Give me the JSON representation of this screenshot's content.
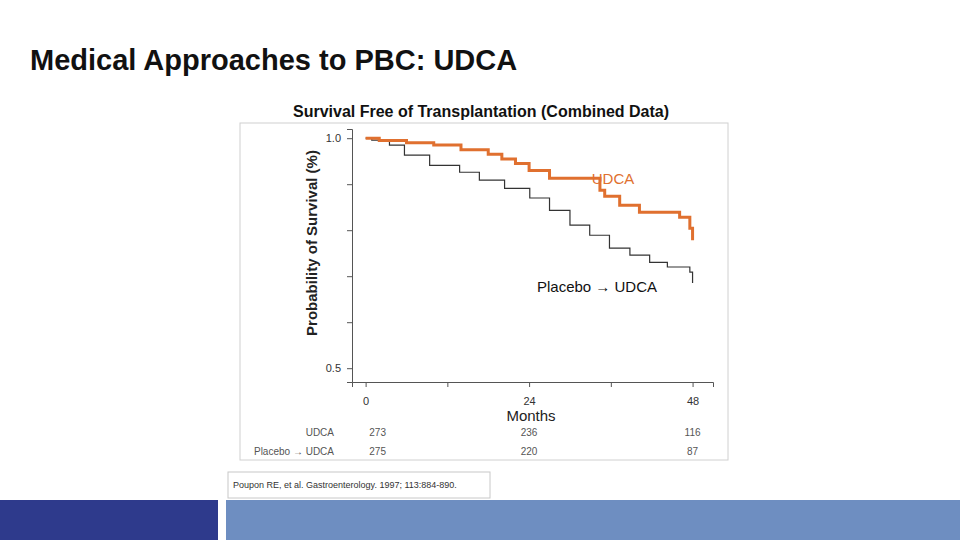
{
  "slide": {
    "title": "Medical Approaches to PBC: UDCA",
    "source": "Poupon RE, et al. Gastroenterology. 1997; 113:884-890."
  },
  "chart_data": {
    "type": "line",
    "title": "Survival Free of Transplantation (Combined Data)",
    "x_label": "Months",
    "y_label": "Probability of Survival (%)",
    "xlim": [
      -2,
      51
    ],
    "ylim": [
      0.47,
      1.02
    ],
    "xticks": [
      0,
      {
        "value": 12,
        "label": null
      },
      24,
      {
        "value": 36,
        "label": null
      },
      48
    ],
    "yticks": [
      {
        "value": 0.5,
        "label": "0.5"
      },
      {
        "value": 0.6,
        "label": null
      },
      {
        "value": 0.7,
        "label": null
      },
      {
        "value": 0.8,
        "label": null
      },
      {
        "value": 0.9,
        "label": null
      },
      {
        "value": 1,
        "label": "1.0"
      }
    ],
    "at_risk_x": [
      0,
      24,
      48
    ],
    "series": [
      {
        "name": "UDCA",
        "color": "#E0702F",
        "line_style": "step",
        "x": [
          0,
          2,
          6,
          10,
          14,
          18,
          20,
          22,
          24,
          27,
          34.4,
          35.1,
          37.3,
          40.2,
          46.1,
          47.6,
          48
        ],
        "values": [
          1.0,
          0.995,
          0.99,
          0.985,
          0.975,
          0.965,
          0.955,
          0.945,
          0.93,
          0.913,
          0.887,
          0.874,
          0.854,
          0.839,
          0.828,
          0.804,
          0.778
        ],
        "at_risk": [
          273,
          236,
          116
        ]
      },
      {
        "name": "Placebo → UDCA",
        "color": "#333333",
        "line_style": "step",
        "x": [
          0,
          0.9,
          3.5,
          5.7,
          9.4,
          13.8,
          16.7,
          20.4,
          24.1,
          27,
          30,
          32.9,
          35.8,
          38.8,
          41.7,
          44.3,
          47.6,
          48
        ],
        "values": [
          1.0,
          0.996,
          0.985,
          0.963,
          0.941,
          0.926,
          0.909,
          0.891,
          0.87,
          0.843,
          0.811,
          0.789,
          0.761,
          0.746,
          0.73,
          0.72,
          0.709,
          0.685
        ],
        "at_risk": [
          275,
          220,
          87
        ]
      }
    ]
  }
}
